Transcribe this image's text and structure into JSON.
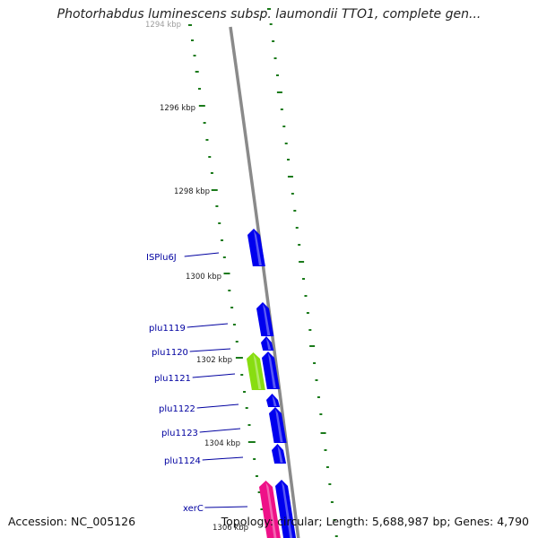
{
  "title": "Photorhabdus luminescens subsp. laumondii TTO1, complete gen...",
  "footer": {
    "accession": "Accession: NC_005126",
    "topology": "Topology: circular; Length: 5,688,987 bp; Genes: 4,790"
  },
  "ticks": [
    {
      "label": "1294 kbp",
      "faded": true
    },
    {
      "label": "1296 kbp"
    },
    {
      "label": "1298 kbp"
    },
    {
      "label": "1300 kbp"
    },
    {
      "label": "1302 kbp"
    },
    {
      "label": "1304 kbp"
    },
    {
      "label": "1306 kbp"
    }
  ],
  "genes": [
    {
      "name": "ISPlu6J",
      "color": "#0000ee"
    },
    {
      "name": "plu1119",
      "color": "#0000ee"
    },
    {
      "name": "plu1120",
      "color": "#0000ee"
    },
    {
      "name": "plu1121",
      "color": "#88dd11"
    },
    {
      "name": "plu1122",
      "color": "#0000ee"
    },
    {
      "name": "plu1123",
      "color": "#0000ee"
    },
    {
      "name": "plu1124",
      "color": "#0000ee"
    },
    {
      "name": "xerC",
      "color": "#ee1188"
    }
  ],
  "colors": {
    "backbone": "#8a8a8a",
    "gc_marks": "#1a7a1a",
    "label_text": "#0000a0",
    "cds_forward": "#0000ee",
    "rna_like": "#88dd11",
    "recombinase": "#ee1188"
  }
}
